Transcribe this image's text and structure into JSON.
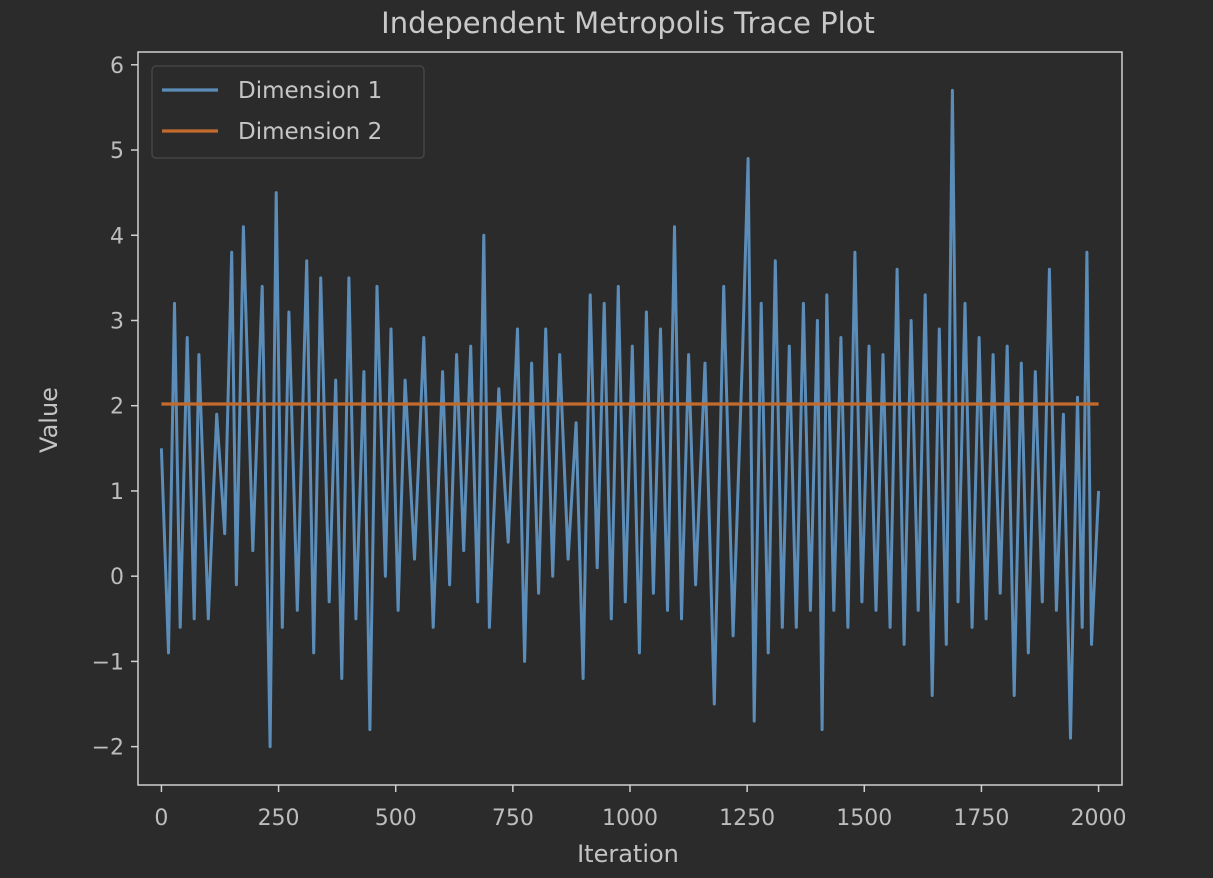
{
  "chart_data": {
    "type": "line",
    "title": "Independent Metropolis Trace Plot",
    "xlabel": "Iteration",
    "ylabel": "Value",
    "xlim": [
      -50,
      2050
    ],
    "ylim": [
      -2.45,
      6.15
    ],
    "xticks": [
      0,
      250,
      500,
      750,
      1000,
      1250,
      1500,
      1750,
      2000
    ],
    "xtick_labels": [
      "0",
      "250",
      "500",
      "750",
      "1000",
      "1250",
      "1500",
      "1750",
      "2000"
    ],
    "yticks": [
      -2,
      -1,
      0,
      1,
      2,
      3,
      4,
      5,
      6
    ],
    "ytick_labels": [
      "−2",
      "−1",
      "0",
      "1",
      "2",
      "3",
      "4",
      "5",
      "6"
    ],
    "grid": false,
    "legend_position": "top-left",
    "series": [
      {
        "name": "Dimension 1",
        "color": "#5b8db8",
        "x": [
          0,
          15,
          28,
          40,
          55,
          70,
          80,
          100,
          118,
          135,
          150,
          160,
          175,
          195,
          215,
          232,
          245,
          258,
          272,
          290,
          310,
          325,
          340,
          358,
          372,
          385,
          400,
          415,
          432,
          445,
          460,
          478,
          490,
          505,
          520,
          540,
          560,
          580,
          600,
          615,
          630,
          645,
          660,
          675,
          688,
          700,
          720,
          740,
          760,
          775,
          790,
          805,
          820,
          835,
          850,
          868,
          885,
          900,
          915,
          930,
          945,
          960,
          975,
          990,
          1005,
          1020,
          1035,
          1050,
          1065,
          1080,
          1095,
          1110,
          1125,
          1140,
          1160,
          1180,
          1200,
          1220,
          1240,
          1252,
          1265,
          1280,
          1295,
          1310,
          1325,
          1340,
          1355,
          1370,
          1385,
          1400,
          1410,
          1420,
          1435,
          1450,
          1465,
          1480,
          1495,
          1510,
          1525,
          1540,
          1555,
          1570,
          1585,
          1600,
          1615,
          1630,
          1645,
          1660,
          1675,
          1688,
          1700,
          1715,
          1730,
          1745,
          1760,
          1775,
          1790,
          1805,
          1820,
          1835,
          1850,
          1865,
          1880,
          1895,
          1910,
          1925,
          1940,
          1955,
          1965,
          1975,
          1985,
          2000
        ],
        "y": [
          1.5,
          -0.9,
          3.2,
          -0.6,
          2.8,
          -0.5,
          2.6,
          -0.5,
          1.9,
          0.5,
          3.8,
          -0.1,
          4.1,
          0.3,
          3.4,
          -2.0,
          4.5,
          -0.6,
          3.1,
          -0.4,
          3.7,
          -0.9,
          3.5,
          -0.3,
          2.3,
          -1.2,
          3.5,
          -0.5,
          2.4,
          -1.8,
          3.4,
          0.0,
          2.9,
          -0.4,
          2.3,
          0.2,
          2.8,
          -0.6,
          2.4,
          -0.1,
          2.6,
          0.3,
          2.7,
          -0.3,
          4.0,
          -0.6,
          2.2,
          0.4,
          2.9,
          -1.0,
          2.5,
          -0.2,
          2.9,
          0.0,
          2.6,
          0.2,
          1.8,
          -1.2,
          3.3,
          0.1,
          3.2,
          -0.5,
          3.4,
          -0.3,
          2.7,
          -0.9,
          3.1,
          -0.2,
          2.9,
          -0.4,
          4.1,
          -0.5,
          2.6,
          -0.1,
          2.5,
          -1.5,
          3.4,
          -0.7,
          2.6,
          4.9,
          -1.7,
          3.2,
          -0.9,
          3.7,
          -0.6,
          2.7,
          -0.6,
          3.2,
          -0.4,
          3.0,
          -1.8,
          3.3,
          -0.4,
          2.8,
          -0.6,
          3.8,
          -0.3,
          2.7,
          -0.4,
          2.6,
          -0.6,
          3.6,
          -0.8,
          3.0,
          -0.4,
          3.3,
          -1.4,
          2.9,
          -0.8,
          5.7,
          -0.3,
          3.2,
          -0.6,
          2.8,
          -0.5,
          2.6,
          -0.2,
          2.7,
          -1.4,
          2.5,
          -0.9,
          2.4,
          -0.3,
          3.6,
          -0.4,
          1.9,
          -1.9,
          2.1,
          -0.6,
          3.8,
          -0.8,
          1.0
        ]
      },
      {
        "name": "Dimension 2",
        "color": "#c26b2c",
        "x": [
          0,
          250,
          500,
          750,
          1000,
          1250,
          1500,
          1750,
          2000
        ],
        "y": [
          2.02,
          2.02,
          2.02,
          2.02,
          2.02,
          2.02,
          2.02,
          2.02,
          2.02
        ]
      }
    ]
  }
}
